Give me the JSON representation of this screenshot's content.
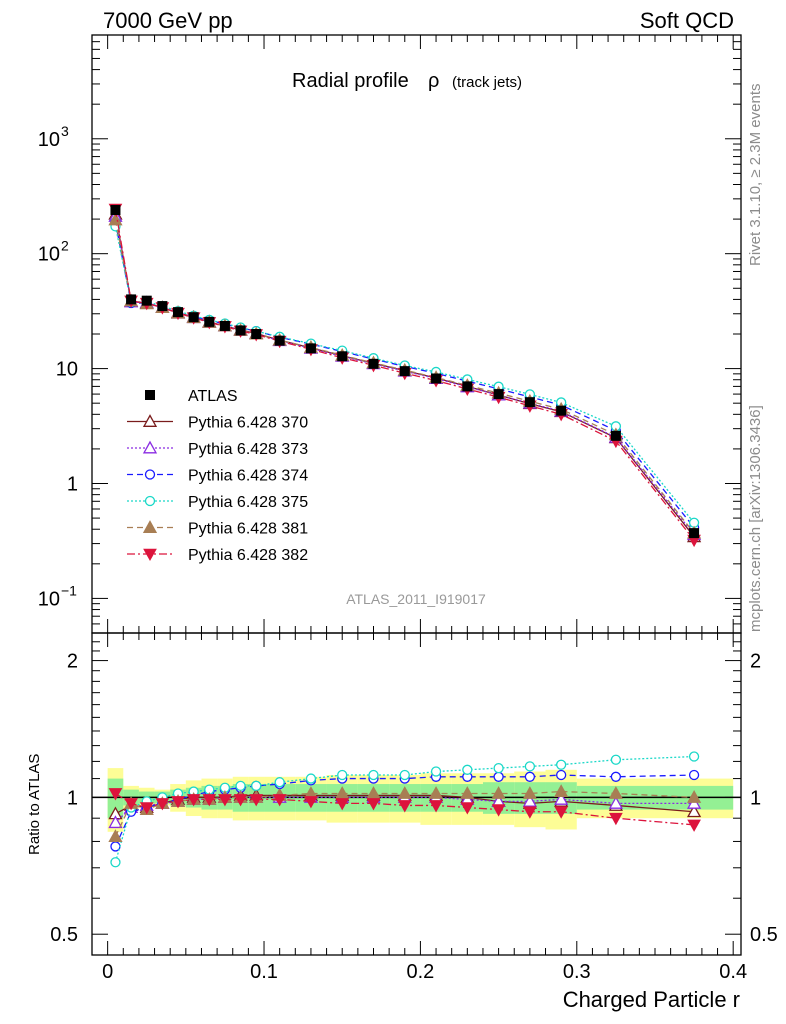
{
  "header": {
    "beam": "7000 GeV pp",
    "process": "Soft QCD",
    "rivet": "Rivet 3.1.10, ≥ 2.3M events",
    "mcplots": "mcplots.cern.ch [arXiv:1306.3436]"
  },
  "chart_data": {
    "type": "scatter",
    "title": "Radial profile ρ (track jets)",
    "title_main": "Radial profile",
    "title_rho": "ρ",
    "title_sub": "(track jets)",
    "analysis_tag": "ATLAS_2011_I919017",
    "xlabel": "Charged Particle r",
    "ylabel_ratio": "Ratio to ATLAS",
    "xlim": [
      -0.01,
      0.405
    ],
    "ylim_main": [
      0.05,
      8000
    ],
    "ylim_ratio": [
      0.45,
      2.3
    ],
    "y_scale_main": "log",
    "y_scale_ratio": "log",
    "x_ticks": [
      0,
      0.1,
      0.2,
      0.3,
      0.4
    ],
    "x_tick_labels": [
      "0",
      "0.1",
      "0.2",
      "0.3",
      "0.4"
    ],
    "y_ticks_main": [
      0.1,
      1,
      10,
      100,
      1000
    ],
    "y_tick_labels_main": [
      "10^-1",
      "1",
      "10",
      "10^2",
      "10^3"
    ],
    "y_ticks_ratio": [
      0.5,
      1,
      2
    ],
    "y_tick_labels_ratio": [
      "0.5",
      "1",
      "2"
    ],
    "legend_position": "middle-left",
    "x": [
      0.005,
      0.015,
      0.025,
      0.035,
      0.045,
      0.055,
      0.065,
      0.075,
      0.085,
      0.095,
      0.11,
      0.13,
      0.15,
      0.17,
      0.19,
      0.21,
      0.23,
      0.25,
      0.27,
      0.29,
      0.325,
      0.375
    ],
    "x_bin_edges": [
      0,
      0.01,
      0.02,
      0.03,
      0.04,
      0.05,
      0.06,
      0.07,
      0.08,
      0.09,
      0.1,
      0.12,
      0.14,
      0.16,
      0.18,
      0.2,
      0.22,
      0.24,
      0.26,
      0.28,
      0.3,
      0.35,
      0.4
    ],
    "data": {
      "name": "ATLAS",
      "values": [
        240,
        40,
        39,
        35,
        31,
        28,
        25.5,
        23.5,
        21.5,
        20,
        17.5,
        15,
        12.8,
        11,
        9.5,
        8.2,
        7,
        6,
        5.1,
        4.3,
        2.6,
        0.37
      ],
      "band_outer": [
        0.16,
        0.06,
        0.05,
        0.04,
        0.07,
        0.09,
        0.1,
        0.1,
        0.11,
        0.11,
        0.11,
        0.11,
        0.12,
        0.12,
        0.12,
        0.13,
        0.13,
        0.13,
        0.14,
        0.15,
        0.1,
        0.1
      ],
      "band_inner": [
        0.1,
        0.04,
        0.03,
        0.03,
        0.04,
        0.05,
        0.06,
        0.06,
        0.07,
        0.07,
        0.07,
        0.07,
        0.07,
        0.07,
        0.07,
        0.07,
        0.07,
        0.08,
        0.08,
        0.08,
        0.06,
        0.06
      ]
    },
    "series": [
      {
        "name": "Pythia 6.428 370",
        "color": "#7a1c1c",
        "marker": "triangle-up-open",
        "dash": "",
        "ratio": [
          0.92,
          0.96,
          0.95,
          0.97,
          0.99,
          1.0,
          1.0,
          1.0,
          1.01,
          1.01,
          1.01,
          1.01,
          1.01,
          1.01,
          1.01,
          1.01,
          1.0,
          0.98,
          0.97,
          0.98,
          0.96,
          0.93
        ]
      },
      {
        "name": "Pythia 6.428 373",
        "color": "#8a2be2",
        "marker": "triangle-up-open",
        "dash": "2,2",
        "ratio": [
          0.88,
          0.95,
          0.96,
          0.97,
          0.98,
          0.99,
          0.99,
          1.0,
          1.0,
          1.0,
          1.0,
          1.0,
          1.0,
          1.0,
          1.0,
          1.0,
          0.99,
          0.98,
          0.98,
          0.99,
          0.97,
          0.97
        ]
      },
      {
        "name": "Pythia 6.428 374",
        "color": "#1a1aff",
        "marker": "circle-open",
        "dash": "6,4",
        "ratio": [
          0.78,
          0.93,
          0.95,
          0.97,
          0.99,
          1.01,
          1.03,
          1.04,
          1.05,
          1.06,
          1.07,
          1.09,
          1.1,
          1.1,
          1.1,
          1.11,
          1.11,
          1.11,
          1.11,
          1.12,
          1.11,
          1.12
        ]
      },
      {
        "name": "Pythia 6.428 375",
        "color": "#1ad8c8",
        "marker": "circle-open",
        "dash": "2,2",
        "ratio": [
          0.72,
          0.95,
          0.98,
          1.0,
          1.02,
          1.03,
          1.04,
          1.05,
          1.06,
          1.06,
          1.08,
          1.1,
          1.12,
          1.12,
          1.12,
          1.14,
          1.15,
          1.16,
          1.17,
          1.18,
          1.21,
          1.23
        ]
      },
      {
        "name": "Pythia 6.428 381",
        "color": "#a87e54",
        "marker": "triangle-up-filled",
        "dash": "6,4",
        "ratio": [
          0.82,
          0.97,
          0.94,
          0.97,
          0.98,
          0.99,
          0.99,
          1.0,
          1.0,
          1.0,
          1.01,
          1.02,
          1.02,
          1.02,
          1.02,
          1.02,
          1.02,
          1.02,
          1.02,
          1.03,
          1.02,
          1.0
        ]
      },
      {
        "name": "Pythia 6.428 382",
        "color": "#dc143c",
        "marker": "triangle-down-filled",
        "dash": "8,3,2,3",
        "ratio": [
          1.02,
          0.97,
          0.95,
          0.97,
          0.98,
          0.99,
          0.99,
          0.99,
          0.99,
          0.99,
          0.99,
          0.98,
          0.97,
          0.97,
          0.96,
          0.96,
          0.95,
          0.94,
          0.93,
          0.93,
          0.9,
          0.87
        ]
      }
    ]
  }
}
